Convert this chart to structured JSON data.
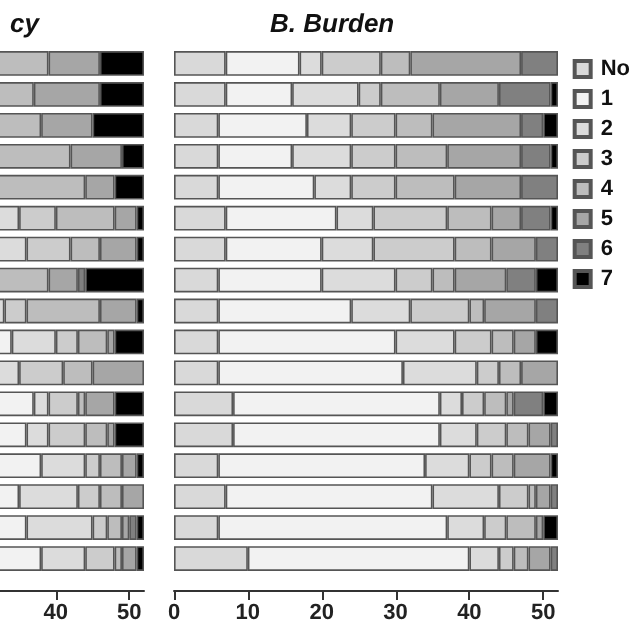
{
  "chart_data": [
    {
      "type": "bar",
      "title": "cy",
      "orientation": "horizontal",
      "stacked": true,
      "legend": false,
      "tick_labels": "x",
      "xlim": [
        0,
        52
      ],
      "xticks": [
        40,
        50
      ],
      "categories": [
        null,
        null,
        null,
        null,
        null,
        null,
        null,
        null,
        null,
        null,
        null,
        null,
        null,
        null,
        null,
        null,
        null
      ],
      "series": [
        {
          "color": "#d9d9d9",
          "values": [
            null,
            null,
            null,
            null,
            null,
            null,
            null,
            null,
            null,
            null,
            null,
            null,
            null,
            null,
            null,
            null,
            null
          ]
        },
        {
          "color": "#f2f2f2",
          "values": [
            null,
            null,
            null,
            null,
            null,
            null,
            null,
            null,
            null,
            34,
            null,
            37,
            36,
            38,
            35,
            36,
            38
          ]
        },
        {
          "color": "#dcdcdc",
          "values": [
            null,
            null,
            null,
            null,
            null,
            35,
            36,
            null,
            33,
            6,
            35,
            2,
            3,
            6,
            8,
            9,
            6
          ]
        },
        {
          "color": "#cccccc",
          "values": [
            null,
            null,
            null,
            null,
            null,
            5,
            6,
            null,
            3,
            3,
            6,
            4,
            5,
            2,
            3,
            2,
            4
          ]
        },
        {
          "color": "#bdbdbd",
          "values": [
            39,
            37,
            38,
            42,
            44,
            8,
            4,
            39,
            10,
            4,
            4,
            1,
            3,
            3,
            3,
            2,
            1
          ]
        },
        {
          "color": "#a6a6a6",
          "values": [
            7,
            9,
            7,
            7,
            4,
            3,
            5,
            4,
            5,
            1,
            7,
            4,
            1,
            2,
            3,
            1,
            2
          ]
        },
        {
          "color": "#808080",
          "values": [
            null,
            null,
            null,
            null,
            null,
            null,
            null,
            1,
            null,
            null,
            null,
            null,
            null,
            null,
            null,
            1,
            null
          ]
        },
        {
          "color": "#000000",
          "values": [
            6,
            6,
            7,
            3,
            4,
            1,
            1,
            8,
            1,
            4,
            null,
            4,
            4,
            1,
            null,
            1,
            1
          ]
        }
      ]
    },
    {
      "type": "bar",
      "title": "B. Burden",
      "orientation": "horizontal",
      "stacked": true,
      "legend": "right",
      "tick_labels": "x",
      "xlim": [
        0,
        52
      ],
      "xticks": [
        0,
        10,
        20,
        30,
        40,
        50
      ],
      "categories": [
        null,
        null,
        null,
        null,
        null,
        null,
        null,
        null,
        null,
        null,
        null,
        null,
        null,
        null,
        null,
        null,
        null
      ],
      "series": [
        {
          "name": "No",
          "color": "#d9d9d9",
          "values": [
            7,
            7,
            6,
            6,
            6,
            7,
            7,
            6,
            6,
            6,
            6,
            8,
            8,
            6,
            7,
            6,
            10
          ]
        },
        {
          "name": "1",
          "color": "#f2f2f2",
          "values": [
            10,
            9,
            12,
            10,
            13,
            15,
            13,
            14,
            18,
            24,
            25,
            28,
            28,
            28,
            28,
            31,
            30
          ]
        },
        {
          "name": "2",
          "color": "#dcdcdc",
          "values": [
            3,
            9,
            6,
            8,
            5,
            5,
            7,
            10,
            8,
            8,
            10,
            3,
            5,
            6,
            9,
            5,
            4
          ]
        },
        {
          "name": "3",
          "color": "#cccccc",
          "values": [
            8,
            3,
            6,
            6,
            6,
            10,
            11,
            5,
            8,
            5,
            3,
            3,
            4,
            3,
            4,
            3,
            2
          ]
        },
        {
          "name": "4",
          "color": "#bdbdbd",
          "values": [
            4,
            8,
            5,
            7,
            8,
            6,
            5,
            3,
            2,
            3,
            3,
            3,
            3,
            3,
            1,
            4,
            2
          ]
        },
        {
          "name": "5",
          "color": "#a6a6a6",
          "values": [
            15,
            8,
            12,
            10,
            9,
            4,
            6,
            7,
            7,
            3,
            5,
            1,
            3,
            5,
            2,
            1,
            3
          ]
        },
        {
          "name": "6",
          "color": "#808080",
          "values": [
            5,
            7,
            3,
            4,
            5,
            4,
            3,
            4,
            3,
            null,
            null,
            4,
            1,
            null,
            1,
            null,
            1
          ]
        },
        {
          "name": "7",
          "color": "#000000",
          "values": [
            null,
            1,
            2,
            1,
            null,
            1,
            null,
            3,
            null,
            3,
            null,
            2,
            null,
            1,
            null,
            2,
            null
          ]
        }
      ]
    }
  ]
}
